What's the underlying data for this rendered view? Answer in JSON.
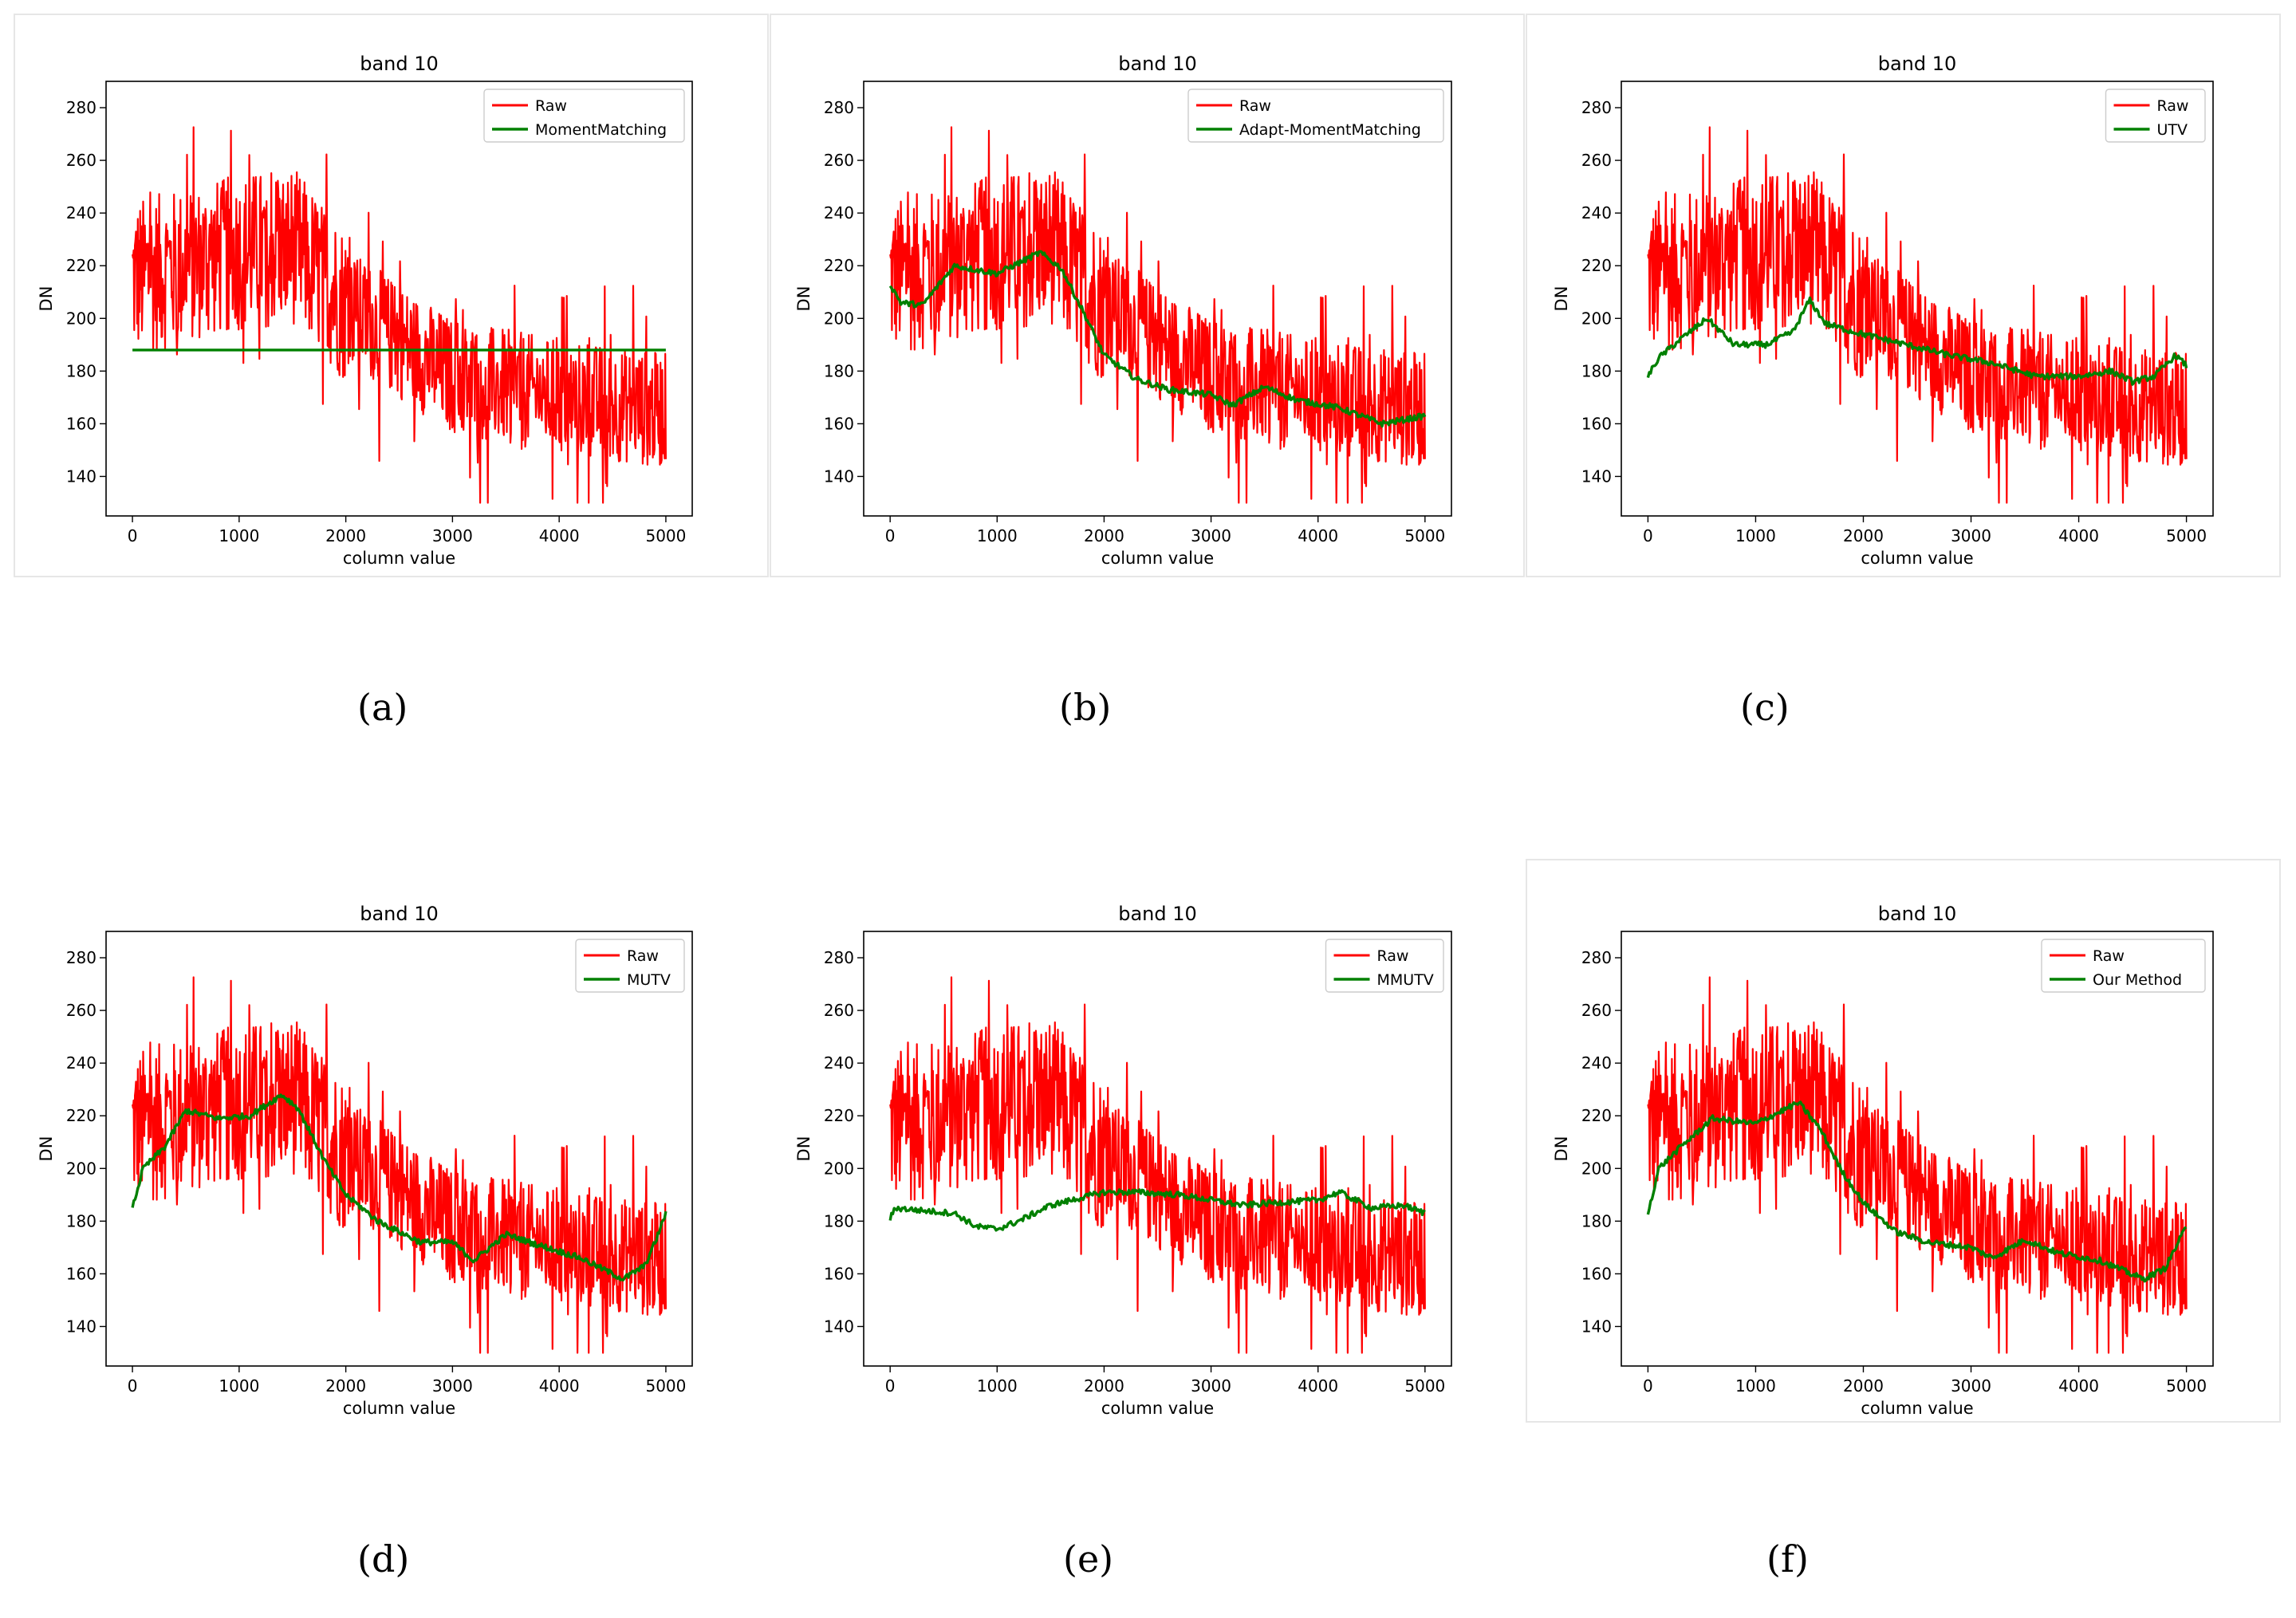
{
  "colors": {
    "raw": "#ff0000",
    "method": "#008000"
  },
  "chart_data": [
    {
      "type": "line",
      "panel": "(a)",
      "title": "band 10",
      "xlabel": "column value",
      "ylabel": "DN",
      "xlim": [
        0,
        5000
      ],
      "ylim": [
        125,
        290
      ],
      "xticks": [
        0,
        1000,
        2000,
        3000,
        4000,
        5000
      ],
      "yticks": [
        140,
        160,
        180,
        200,
        220,
        240,
        260,
        280
      ],
      "legend": "top-right",
      "series": [
        {
          "name": "Raw",
          "color": "#ff0000",
          "x": [
            0,
            1000,
            1500,
            2000,
            3000,
            4000,
            5000
          ],
          "y": [
            215,
            225,
            228,
            205,
            178,
            170,
            165
          ]
        },
        {
          "name": "MomentMatching",
          "color": "#008000",
          "x": [
            0,
            5000
          ],
          "y": [
            188,
            188
          ]
        }
      ]
    },
    {
      "type": "line",
      "panel": "(b)",
      "title": "band 10",
      "xlabel": "column value",
      "ylabel": "DN",
      "xlim": [
        0,
        5000
      ],
      "ylim": [
        125,
        290
      ],
      "xticks": [
        0,
        1000,
        2000,
        3000,
        4000,
        5000
      ],
      "yticks": [
        140,
        160,
        180,
        200,
        220,
        240,
        260,
        280
      ],
      "legend": "top-right",
      "series": [
        {
          "name": "Raw",
          "color": "#ff0000",
          "x": [
            0,
            1000,
            1500,
            2000,
            3000,
            4000,
            5000
          ],
          "y": [
            215,
            225,
            228,
            205,
            178,
            170,
            165
          ]
        },
        {
          "name": "Adapt-MomentMatching",
          "color": "#008000",
          "x": [
            0,
            100,
            300,
            600,
            1000,
            1400,
            1600,
            1800,
            2000,
            2300,
            2600,
            3000,
            3200,
            3500,
            3800,
            4200,
            4600,
            5000
          ],
          "y": [
            213,
            206,
            205,
            220,
            217,
            225,
            219,
            203,
            186,
            177,
            173,
            171,
            167,
            174,
            169,
            166,
            160,
            163
          ]
        }
      ]
    },
    {
      "type": "line",
      "panel": "(c)",
      "title": "band 10",
      "xlabel": "column value",
      "ylabel": "DN",
      "xlim": [
        0,
        5000
      ],
      "ylim": [
        125,
        290
      ],
      "xticks": [
        0,
        1000,
        2000,
        3000,
        4000,
        5000
      ],
      "yticks": [
        140,
        160,
        180,
        200,
        220,
        240,
        260,
        280
      ],
      "legend": "top-right",
      "series": [
        {
          "name": "Raw",
          "color": "#ff0000",
          "x": [
            0,
            1000,
            1500,
            2000,
            3000,
            4000,
            5000
          ],
          "y": [
            215,
            225,
            228,
            205,
            178,
            170,
            165
          ]
        },
        {
          "name": "UTV",
          "color": "#008000",
          "x": [
            0,
            100,
            300,
            550,
            800,
            1100,
            1350,
            1500,
            1650,
            1900,
            2300,
            2800,
            3200,
            3600,
            4000,
            4300,
            4500,
            4700,
            4900,
            5000
          ],
          "y": [
            178,
            185,
            192,
            200,
            190,
            190,
            195,
            207,
            198,
            195,
            191,
            186,
            183,
            178,
            178,
            180,
            176,
            178,
            186,
            182
          ]
        }
      ]
    },
    {
      "type": "line",
      "panel": "(d)",
      "title": "band 10",
      "xlabel": "column value",
      "ylabel": "DN",
      "xlim": [
        0,
        5000
      ],
      "ylim": [
        125,
        290
      ],
      "xticks": [
        0,
        1000,
        2000,
        3000,
        4000,
        5000
      ],
      "yticks": [
        140,
        160,
        180,
        200,
        220,
        240,
        260,
        280
      ],
      "legend": "top-right",
      "series": [
        {
          "name": "Raw",
          "color": "#ff0000",
          "x": [
            0,
            1000,
            1500,
            2000,
            3000,
            4000,
            5000
          ],
          "y": [
            215,
            225,
            228,
            205,
            178,
            170,
            165
          ]
        },
        {
          "name": "MUTV",
          "color": "#008000",
          "x": [
            0,
            100,
            300,
            500,
            800,
            1100,
            1400,
            1550,
            1800,
            2000,
            2300,
            2700,
            3000,
            3200,
            3500,
            3800,
            4200,
            4600,
            4800,
            4900,
            5000
          ],
          "y": [
            185,
            200,
            208,
            222,
            219,
            220,
            228,
            223,
            203,
            190,
            180,
            172,
            172,
            165,
            175,
            171,
            166,
            158,
            163,
            172,
            183
          ]
        }
      ]
    },
    {
      "type": "line",
      "panel": "(e)",
      "title": "band 10",
      "xlabel": "column value",
      "ylabel": "DN",
      "xlim": [
        0,
        5000
      ],
      "ylim": [
        125,
        290
      ],
      "xticks": [
        0,
        1000,
        2000,
        3000,
        4000,
        5000
      ],
      "yticks": [
        140,
        160,
        180,
        200,
        220,
        240,
        260,
        280
      ],
      "legend": "top-right",
      "series": [
        {
          "name": "Raw",
          "color": "#ff0000",
          "x": [
            0,
            1000,
            1500,
            2000,
            3000,
            4000,
            5000
          ],
          "y": [
            215,
            225,
            228,
            205,
            178,
            170,
            165
          ]
        },
        {
          "name": "MMUTV",
          "color": "#008000",
          "x": [
            0,
            50,
            300,
            600,
            800,
            1000,
            1200,
            1500,
            1800,
            2000,
            2300,
            2700,
            3000,
            3300,
            3600,
            4000,
            4200,
            4500,
            4800,
            5000
          ],
          "y": [
            181,
            185,
            184,
            183,
            178,
            177,
            180,
            186,
            189,
            191,
            191,
            190,
            188,
            186,
            187,
            188,
            191,
            185,
            186,
            183
          ]
        }
      ]
    },
    {
      "type": "line",
      "panel": "(f)",
      "title": "band 10",
      "xlabel": "column value",
      "ylabel": "DN",
      "xlim": [
        0,
        5000
      ],
      "ylim": [
        125,
        290
      ],
      "xticks": [
        0,
        1000,
        2000,
        3000,
        4000,
        5000
      ],
      "yticks": [
        140,
        160,
        180,
        200,
        220,
        240,
        260,
        280
      ],
      "legend": "top-right",
      "series": [
        {
          "name": "Raw",
          "color": "#ff0000",
          "x": [
            0,
            1000,
            1500,
            2000,
            3000,
            4000,
            5000
          ],
          "y": [
            215,
            225,
            228,
            205,
            178,
            170,
            165
          ]
        },
        {
          "name": "Our Method",
          "color": "#008000",
          "x": [
            0,
            100,
            300,
            600,
            1000,
            1400,
            1600,
            1800,
            2000,
            2300,
            2600,
            3000,
            3200,
            3500,
            3800,
            4200,
            4600,
            4800,
            5000
          ],
          "y": [
            183,
            200,
            208,
            219,
            217,
            225,
            215,
            199,
            187,
            176,
            172,
            170,
            166,
            173,
            168,
            165,
            158,
            162,
            178
          ]
        }
      ]
    }
  ]
}
